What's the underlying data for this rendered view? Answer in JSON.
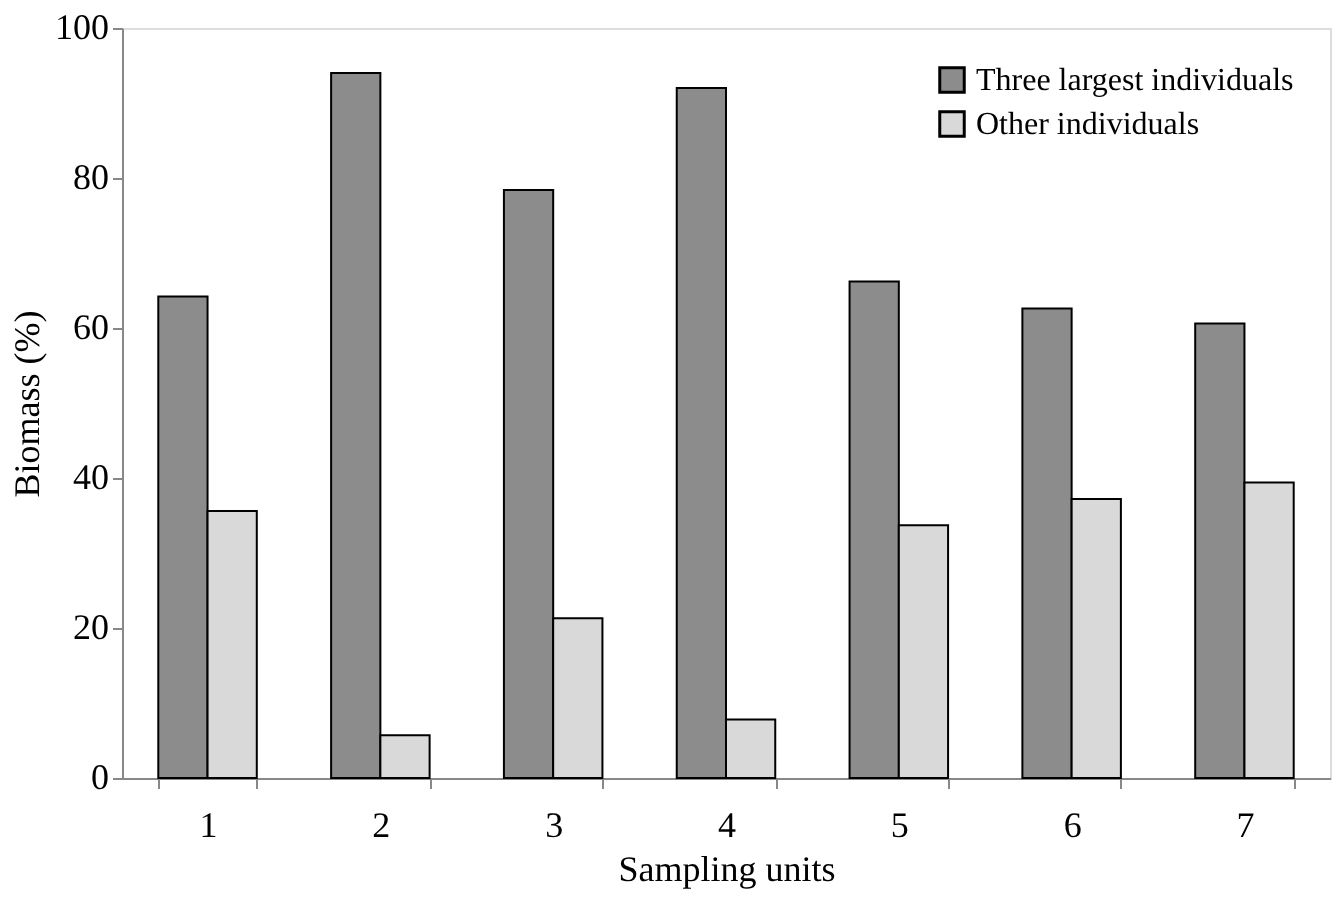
{
  "chart_data": {
    "type": "bar",
    "xlabel": "Sampling units",
    "ylabel": "Biomass (%)",
    "categories": [
      "1",
      "2",
      "3",
      "4",
      "5",
      "6",
      "7"
    ],
    "series": [
      {
        "name": "Three largest individuals",
        "color": "#8c8c8c",
        "values": [
          64.2,
          94.0,
          78.4,
          92.0,
          66.2,
          62.6,
          60.6
        ]
      },
      {
        "name": "Other individuals",
        "color": "#d9d9d9",
        "values": [
          35.6,
          5.7,
          21.3,
          7.8,
          33.7,
          37.2,
          39.4
        ]
      }
    ],
    "ylim": [
      0,
      100
    ],
    "yticks": [
      0,
      20,
      40,
      60,
      80,
      100
    ],
    "grid": false,
    "legend": "top right"
  }
}
